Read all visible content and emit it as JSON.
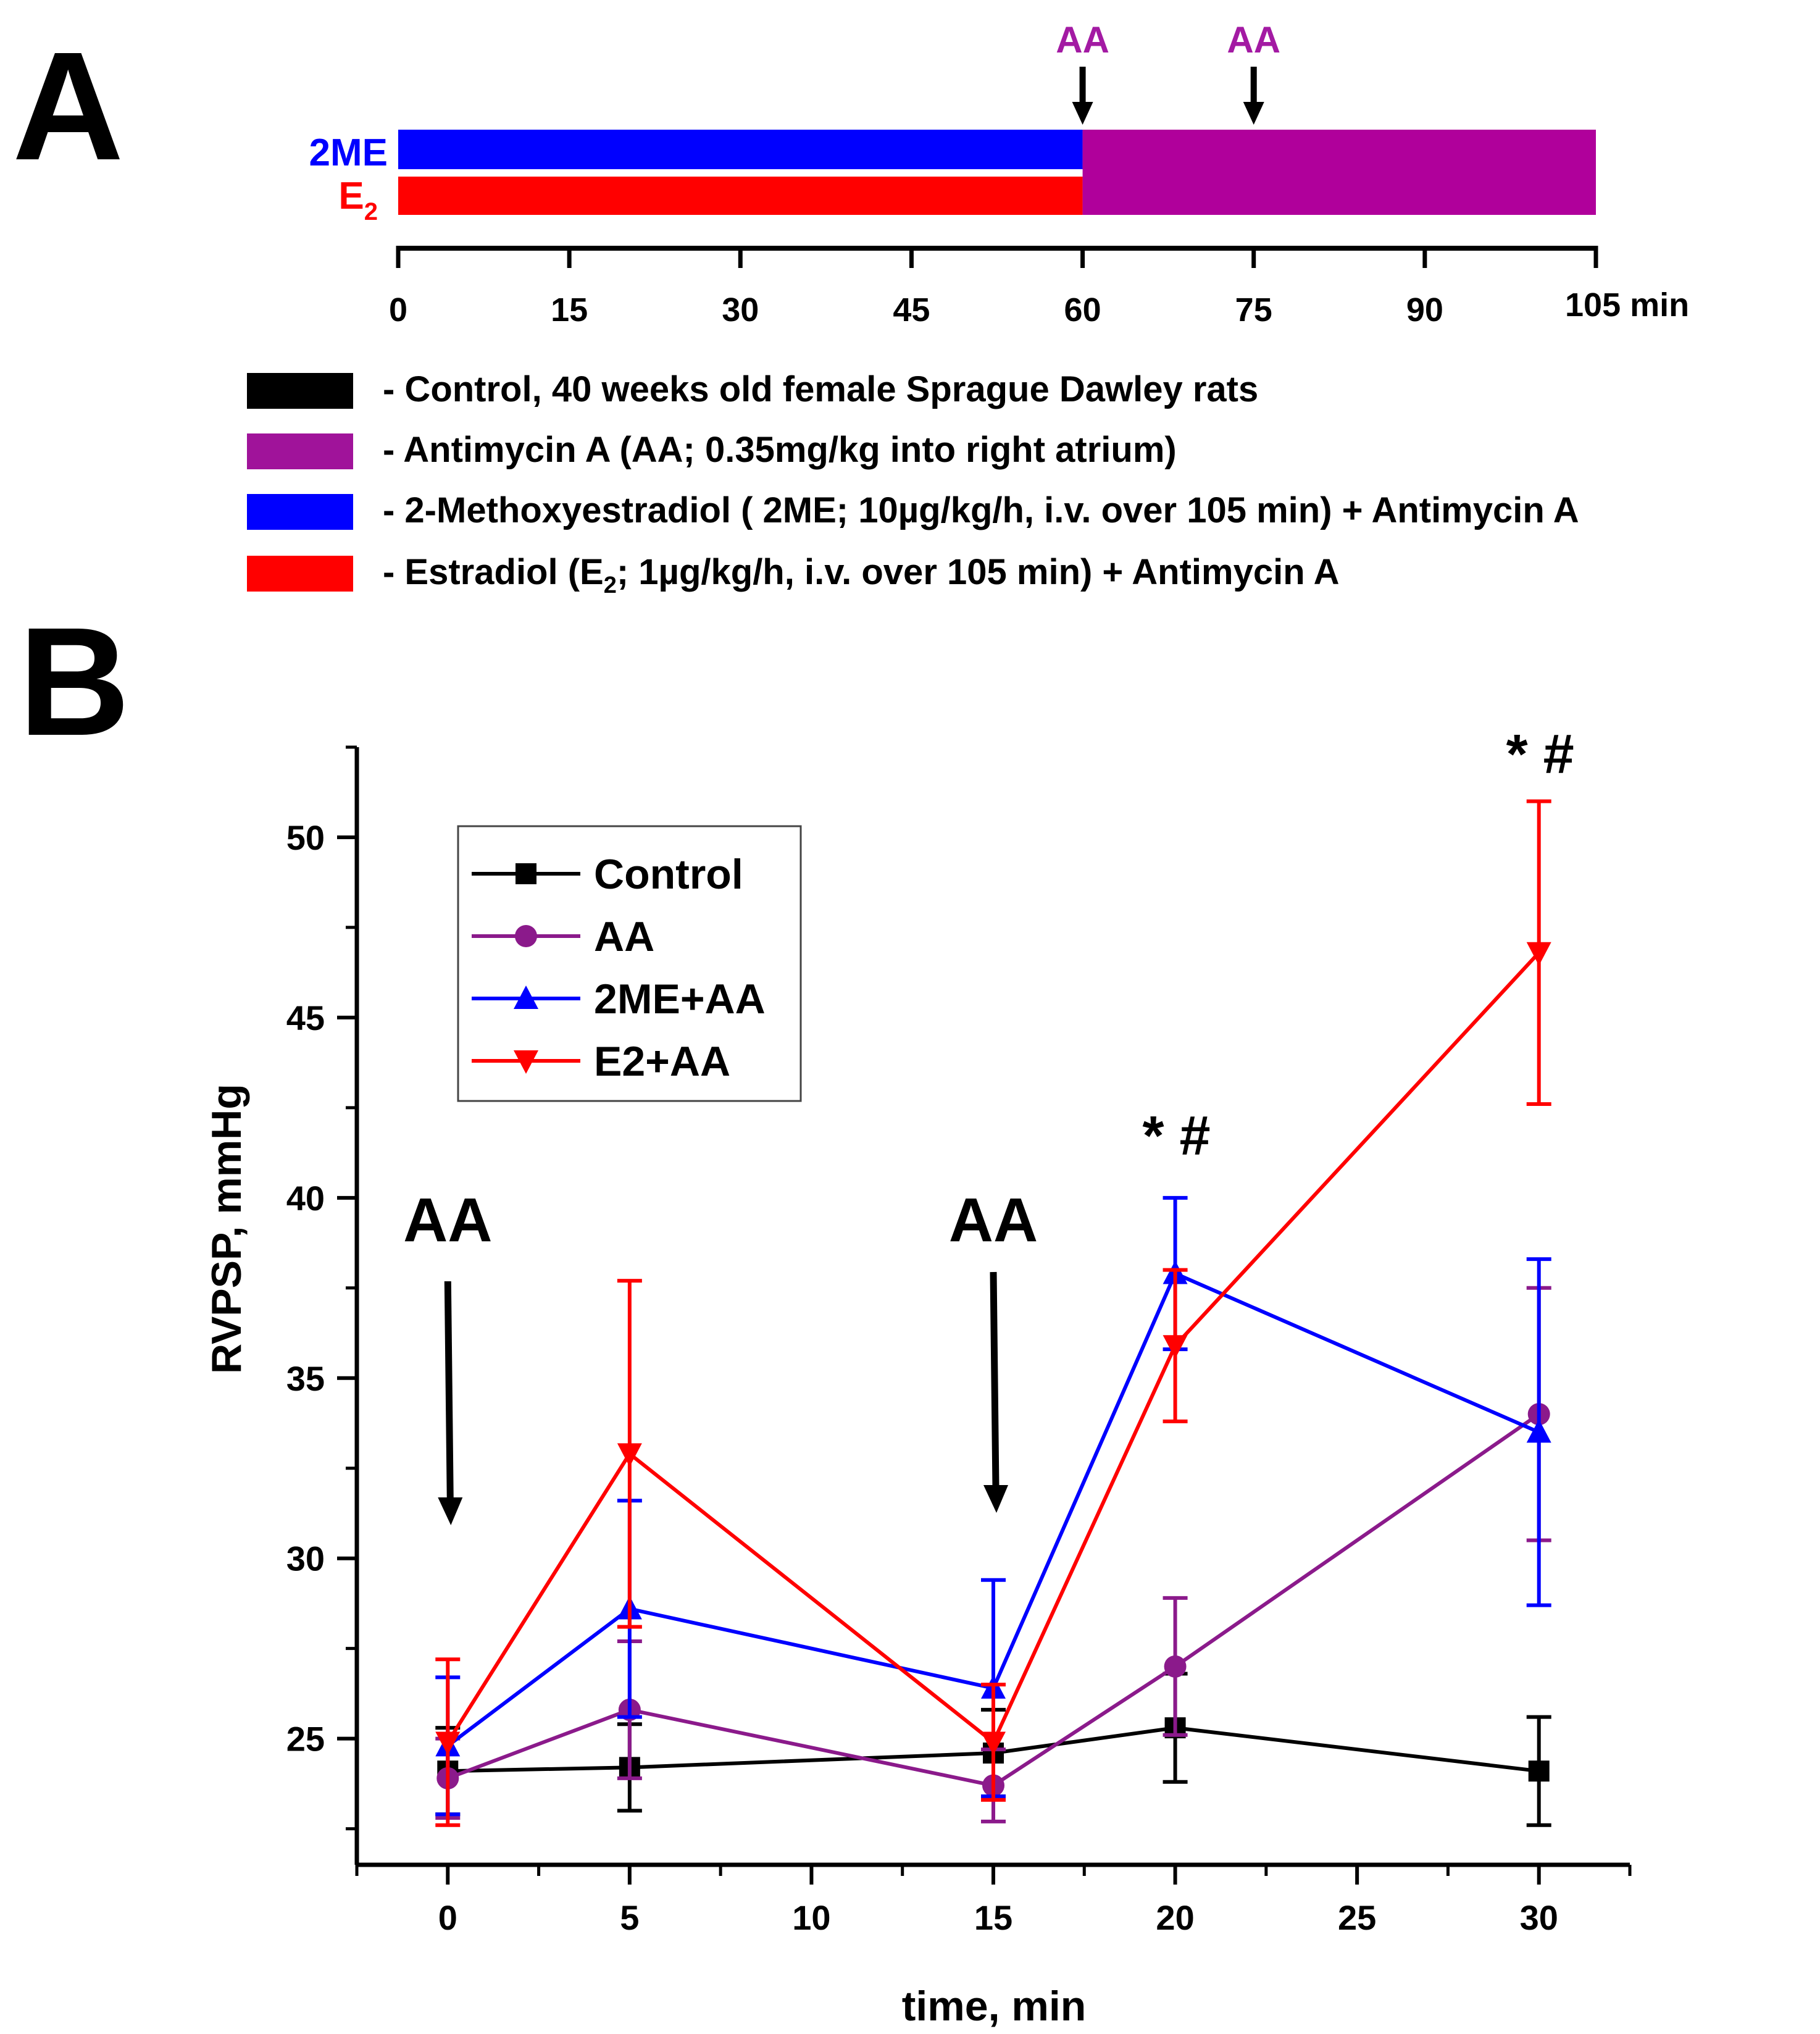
{
  "panel_a": {
    "label": "A",
    "row_labels": {
      "top": "2ME",
      "bottom_base": "E",
      "bottom_sub": "2"
    },
    "aa_marks": [
      {
        "text": "AA",
        "time": 60
      },
      {
        "text": "AA",
        "time": 75
      }
    ],
    "timeline": {
      "ticks": [
        0,
        15,
        30,
        45,
        60,
        75,
        90
      ],
      "last_tick_label": "105 min",
      "max": 105
    },
    "bars": {
      "top": {
        "start": 0,
        "switch": 60,
        "end": 105
      },
      "bottom": {
        "start": 0,
        "switch": 60,
        "end": 105
      }
    },
    "colors": {
      "control": "#000000",
      "aa": "#b0009b",
      "me2": "#0000ff",
      "e2": "#ff0000",
      "aa_text": "#a31aa3"
    },
    "legend": [
      {
        "swatch": "#000000",
        "text": "- Control, 40 weeks old female Sprague Dawley rats"
      },
      {
        "swatch": "#a0139a",
        "text": "- Antimycin A (AA; 0.35mg/kg into right atrium)"
      },
      {
        "swatch": "#0000ff",
        "text": "- 2-Methoxyestradiol ( 2ME; 10µg/kg/h, i.v. over 105 min) + Antimycin A"
      },
      {
        "swatch": "#ff0000",
        "text_parts": [
          "- Estradiol   (E",
          "2",
          "; 1µg/kg/h, i.v. over 105 min)  + Antimycin A"
        ]
      }
    ]
  },
  "panel_b": {
    "label": "B",
    "arrow_labels": [
      {
        "text": "AA",
        "x": 0
      },
      {
        "text": "AA",
        "x": 15
      }
    ],
    "significance": [
      {
        "text": "* #",
        "x": 20
      },
      {
        "text": "* #",
        "x": 30
      }
    ]
  },
  "chart_data": {
    "type": "line",
    "title": "",
    "xlabel": "time, min",
    "ylabel": "RVPSP, mmHg",
    "xlim": [
      -2.5,
      32.5
    ],
    "ylim": [
      21.5,
      52.5
    ],
    "xticks": [
      0,
      5,
      10,
      15,
      20,
      25,
      30
    ],
    "yticks": [
      25,
      30,
      35,
      40,
      45,
      50
    ],
    "grid": false,
    "legend_position": "top-left",
    "x": [
      0,
      5,
      15,
      20,
      30
    ],
    "series": [
      {
        "name": "Control",
        "color": "#000000",
        "marker": "square",
        "values": [
          24.1,
          24.2,
          24.6,
          25.3,
          24.1
        ],
        "errors": [
          1.2,
          1.2,
          1.2,
          1.5,
          1.5
        ]
      },
      {
        "name": "AA",
        "color": "#8b1a8b",
        "marker": "circle",
        "values": [
          23.9,
          25.8,
          23.7,
          27.0,
          34.0
        ],
        "errors": [
          1.1,
          1.9,
          1.0,
          1.9,
          3.5
        ]
      },
      {
        "name": "2ME+AA",
        "color": "#0000ff",
        "marker": "triangle-up",
        "values": [
          24.8,
          28.6,
          26.4,
          37.9,
          33.5
        ],
        "errors": [
          1.9,
          3.0,
          3.0,
          2.1,
          4.8
        ]
      },
      {
        "name": "E2+AA",
        "color": "#ff0000",
        "marker": "triangle-down",
        "values": [
          24.9,
          32.9,
          24.9,
          35.9,
          46.8
        ],
        "errors": [
          2.3,
          4.8,
          1.6,
          2.1,
          4.2
        ]
      }
    ]
  }
}
